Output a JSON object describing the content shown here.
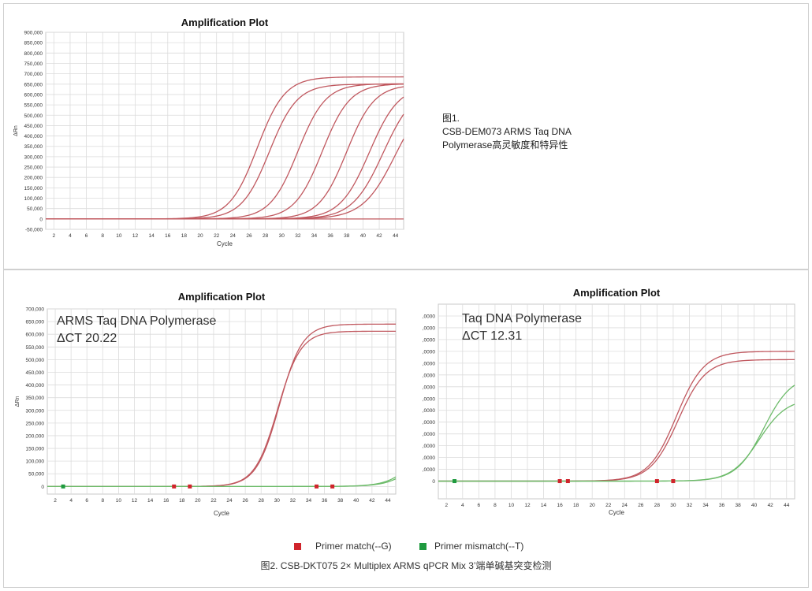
{
  "charts_meta": {
    "chart_titles": [
      "Amplification Plot",
      "Amplification Plot",
      "Amplification Plot"
    ]
  },
  "caption_top": {
    "line1": "图1.",
    "line2": "CSB-DEM073 ARMS Taq DNA",
    "line3": "Polymerase高灵敏度和特异性"
  },
  "overlay_left": {
    "line1": "ARMS Taq DNA Polymerase",
    "line2": "ΔCT 20.22"
  },
  "overlay_right": {
    "line1": "Taq DNA Polymerase",
    "line2": "ΔCT 12.31"
  },
  "legend": {
    "items": [
      {
        "label": "Primer match(--G)",
        "color": "#d0242b"
      },
      {
        "label": "Primer mismatch(--T)",
        "color": "#1f9a3f"
      }
    ]
  },
  "caption_bottom": "图2. CSB-DKT075 2× Multiplex ARMS qPCR Mix 3’端单碱基突变检测",
  "colors": {
    "match": "#c0585f",
    "mismatch": "#6dbb6a",
    "grid": "#dcdcdc",
    "axis": "#666666"
  },
  "chart_data": [
    {
      "type": "line",
      "title": "Amplification Plot",
      "xlabel": "Cycle",
      "ylabel": "ΔRn",
      "xlim": [
        1,
        45
      ],
      "ylim": [
        -50000,
        900000
      ],
      "x_ticks": [
        2,
        4,
        6,
        8,
        10,
        12,
        14,
        16,
        18,
        20,
        22,
        24,
        26,
        28,
        30,
        32,
        34,
        36,
        38,
        40,
        42,
        44
      ],
      "y_ticks": [
        -50000,
        0,
        50000,
        100000,
        150000,
        200000,
        250000,
        300000,
        350000,
        400000,
        450000,
        500000,
        550000,
        600000,
        650000,
        700000,
        750000,
        800000,
        850000,
        900000
      ],
      "y_tick_labels": [
        "-50,000",
        "0",
        "50,000",
        "100,000",
        "150,000",
        "200,000",
        "250,000",
        "300,000",
        "350,000",
        "400,000",
        "450,000",
        "500,000",
        "550,000",
        "600,000",
        "650,000",
        "700,000",
        "750,000",
        "800,000",
        "850,000",
        "900,000"
      ],
      "series": [
        {
          "group": "match",
          "plateau": 685000,
          "midpoint": 27.0,
          "slope": 1.7
        },
        {
          "group": "match",
          "plateau": 650000,
          "midpoint": 28.5,
          "slope": 1.7
        },
        {
          "group": "match",
          "plateau": 652000,
          "midpoint": 32.0,
          "slope": 1.7
        },
        {
          "group": "match",
          "plateau": 652000,
          "midpoint": 35.0,
          "slope": 1.7
        },
        {
          "group": "match",
          "plateau": 648000,
          "midpoint": 38.0,
          "slope": 1.7
        },
        {
          "group": "match",
          "plateau": 645000,
          "midpoint": 40.8,
          "slope": 1.8
        },
        {
          "group": "match",
          "plateau": 640000,
          "midpoint": 42.5,
          "slope": 1.9
        },
        {
          "group": "match",
          "plateau": 620000,
          "midpoint": 44.0,
          "slope": 2.0
        },
        {
          "group": "match",
          "plateau": 0,
          "midpoint": 30,
          "slope": 2
        }
      ]
    },
    {
      "type": "line",
      "title": "Amplification Plot",
      "xlabel": "Cycle",
      "ylabel": "ΔRn",
      "xlim": [
        1,
        45
      ],
      "ylim": [
        -30000,
        700000
      ],
      "x_ticks": [
        2,
        4,
        6,
        8,
        10,
        12,
        14,
        16,
        18,
        20,
        22,
        24,
        26,
        28,
        30,
        32,
        34,
        36,
        38,
        40,
        42,
        44
      ],
      "y_ticks": [
        0,
        50000,
        100000,
        150000,
        200000,
        250000,
        300000,
        350000,
        400000,
        450000,
        500000,
        550000,
        600000,
        650000,
        700000
      ],
      "y_tick_labels": [
        "0",
        "50,000",
        "100,000",
        "150,000",
        "200,000",
        "250,000",
        "300,000",
        "350,000",
        "400,000",
        "450,000",
        "500,000",
        "550,000",
        "600,000",
        "650,000",
        "700,000"
      ],
      "threshold_markers": [
        {
          "group": "mismatch",
          "x": 3
        },
        {
          "group": "match",
          "x": 17
        },
        {
          "group": "match",
          "x": 19
        },
        {
          "group": "match",
          "x": 35
        },
        {
          "group": "match",
          "x": 37
        }
      ],
      "series": [
        {
          "group": "match",
          "plateau": 640000,
          "midpoint": 30.3,
          "slope": 1.45
        },
        {
          "group": "match",
          "plateau": 612000,
          "midpoint": 30.1,
          "slope": 1.45
        },
        {
          "group": "mismatch",
          "plateau": 500000,
          "midpoint": 49.5,
          "slope": 1.8
        },
        {
          "group": "mismatch",
          "plateau": 420000,
          "midpoint": 49.6,
          "slope": 1.8
        }
      ]
    },
    {
      "type": "line",
      "title": "Amplification Plot",
      "xlabel": "Cycle",
      "ylabel": "",
      "xlim": [
        1,
        45
      ],
      "ylim": [
        -15000,
        150000
      ],
      "x_ticks": [
        2,
        4,
        6,
        8,
        10,
        12,
        14,
        16,
        18,
        20,
        22,
        24,
        26,
        28,
        30,
        32,
        34,
        36,
        38,
        40,
        42,
        44
      ],
      "y_ticks": [
        0,
        10000,
        20000,
        30000,
        40000,
        50000,
        60000,
        70000,
        80000,
        90000,
        100000,
        110000,
        120000,
        130000,
        140000
      ],
      "y_tick_labels": [
        "0",
        ",0000",
        ",0000",
        ",0000",
        ",0000",
        ",0000",
        ",0000",
        ",0000",
        ",0000",
        ",0000",
        ",0000",
        ",0000",
        ",0000",
        ",0000",
        ",0000"
      ],
      "threshold_markers": [
        {
          "group": "mismatch",
          "x": 3
        },
        {
          "group": "match",
          "x": 16
        },
        {
          "group": "match",
          "x": 17
        },
        {
          "group": "match",
          "x": 28
        },
        {
          "group": "match",
          "x": 30
        }
      ],
      "series": [
        {
          "group": "match",
          "plateau": 110000,
          "midpoint": 30.4,
          "slope": 1.7
        },
        {
          "group": "match",
          "plateau": 103000,
          "midpoint": 30.6,
          "slope": 1.7
        },
        {
          "group": "mismatch",
          "plateau": 90000,
          "midpoint": 41.2,
          "slope": 1.7
        },
        {
          "group": "mismatch",
          "plateau": 70000,
          "midpoint": 40.6,
          "slope": 1.7
        }
      ]
    }
  ]
}
